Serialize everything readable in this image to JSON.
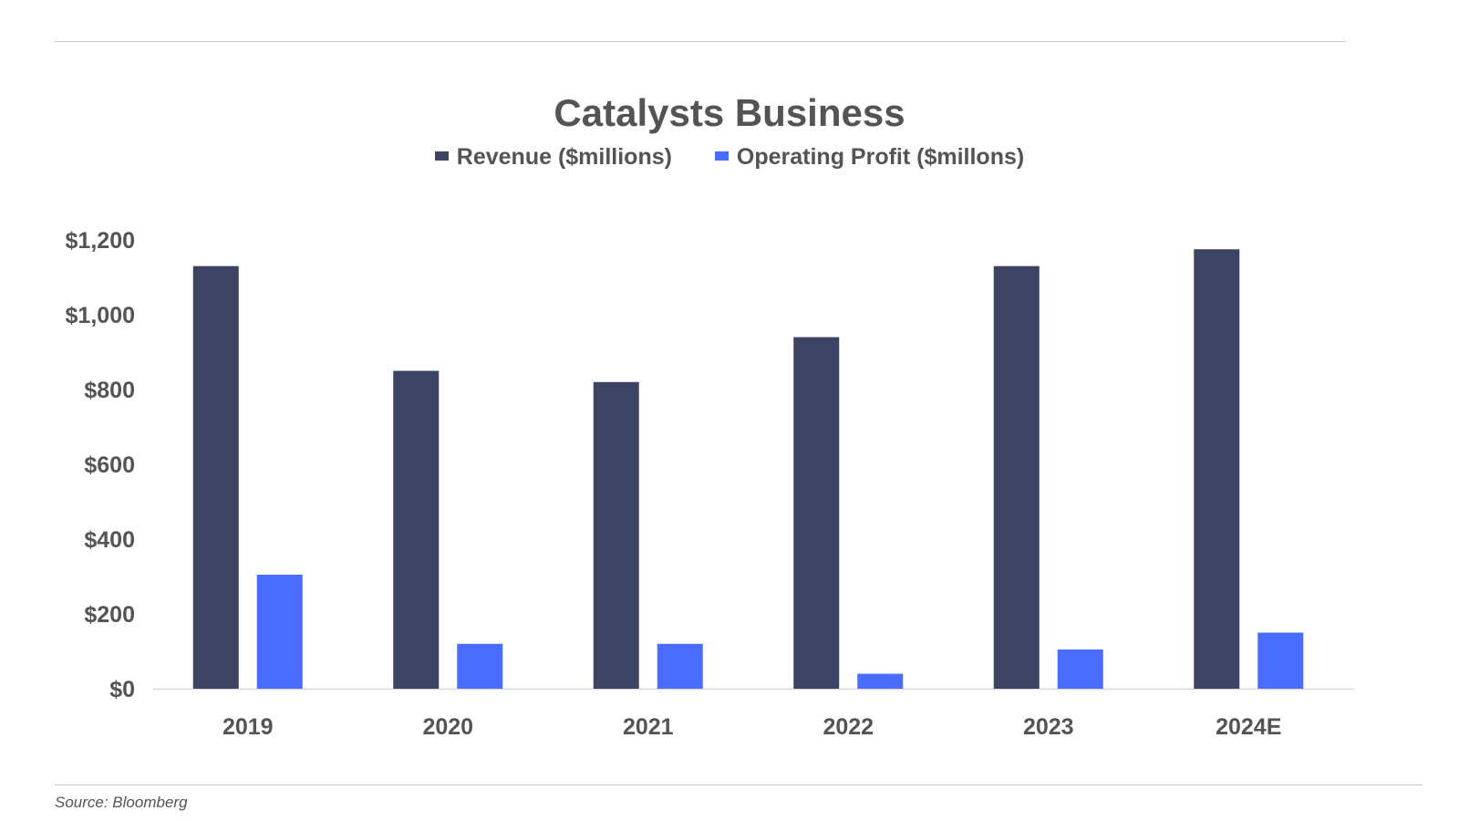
{
  "chart_data": {
    "type": "bar",
    "title": "Catalysts Business",
    "xlabel": "",
    "ylabel": "",
    "categories": [
      "2019",
      "2020",
      "2021",
      "2022",
      "2023",
      "2024E"
    ],
    "series": [
      {
        "name": "Revenue ($millions)",
        "color": "#3d4463",
        "values": [
          1130,
          850,
          820,
          940,
          1130,
          1175
        ]
      },
      {
        "name": "Operating Profit ($millons)",
        "color": "#4a6cff",
        "values": [
          305,
          120,
          120,
          40,
          105,
          150
        ]
      }
    ],
    "ylim": [
      0,
      1200
    ],
    "yticks": [
      0,
      200,
      400,
      600,
      800,
      1000,
      1200
    ],
    "ytick_labels": [
      "$0",
      "$200",
      "$400",
      "$600",
      "$800",
      "$1,000",
      "$1,200"
    ],
    "grid": false,
    "legend_position": "top-center"
  },
  "source": "Source: Bloomberg"
}
